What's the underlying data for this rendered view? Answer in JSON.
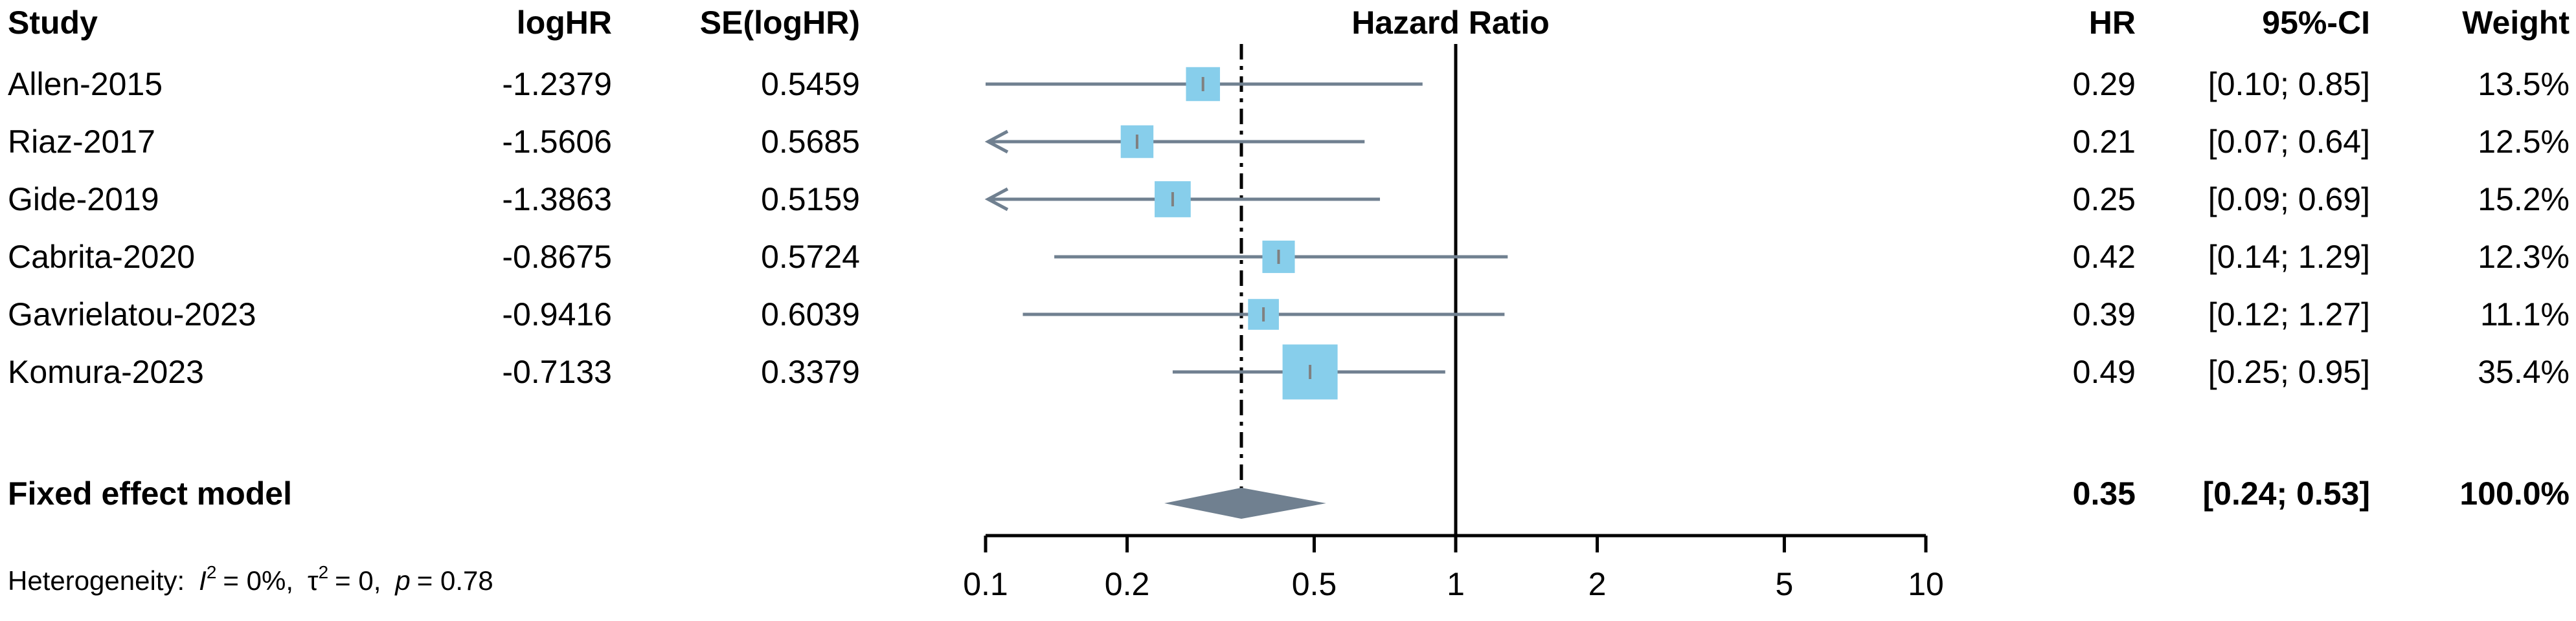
{
  "chart_data": {
    "type": "forest",
    "title": "Hazard Ratio",
    "columns": {
      "study": "Study",
      "loghr": "logHR",
      "se": "SE(logHR)",
      "hr": "HR",
      "ci": "95%-CI",
      "weight": "Weight"
    },
    "x_scale": "log",
    "xlim": [
      0.1,
      10
    ],
    "ticks": [
      {
        "value": 0.1,
        "label": "0.1"
      },
      {
        "value": 0.2,
        "label": "0.2"
      },
      {
        "value": 0.5,
        "label": "0.5"
      },
      {
        "value": 1,
        "label": "1"
      },
      {
        "value": 2,
        "label": "2"
      },
      {
        "value": 5,
        "label": "5"
      },
      {
        "value": 10,
        "label": "10"
      }
    ],
    "reference_line": 1,
    "pooled_line": 0.35,
    "studies": [
      {
        "name": "Allen-2015",
        "loghr": "-1.2379",
        "se": "0.5459",
        "hr_text": "0.29",
        "ci_text": "[0.10; 0.85]",
        "weight_text": "13.5%",
        "hr": 0.29,
        "lower": 0.1,
        "upper": 0.85,
        "weight": 13.5
      },
      {
        "name": "Riaz-2017",
        "loghr": "-1.5606",
        "se": "0.5685",
        "hr_text": "0.21",
        "ci_text": "[0.07; 0.64]",
        "weight_text": "12.5%",
        "hr": 0.21,
        "lower": 0.07,
        "upper": 0.64,
        "weight": 12.5
      },
      {
        "name": "Gide-2019",
        "loghr": "-1.3863",
        "se": "0.5159",
        "hr_text": "0.25",
        "ci_text": "[0.09; 0.69]",
        "weight_text": "15.2%",
        "hr": 0.25,
        "lower": 0.09,
        "upper": 0.69,
        "weight": 15.2
      },
      {
        "name": "Cabrita-2020",
        "loghr": "-0.8675",
        "se": "0.5724",
        "hr_text": "0.42",
        "ci_text": "[0.14; 1.29]",
        "weight_text": "12.3%",
        "hr": 0.42,
        "lower": 0.14,
        "upper": 1.29,
        "weight": 12.3
      },
      {
        "name": "Gavrielatou-2023",
        "loghr": "-0.9416",
        "se": "0.6039",
        "hr_text": "0.39",
        "ci_text": "[0.12; 1.27]",
        "weight_text": "11.1%",
        "hr": 0.39,
        "lower": 0.12,
        "upper": 1.27,
        "weight": 11.1
      },
      {
        "name": "Komura-2023",
        "loghr": "-0.7133",
        "se": "0.3379",
        "hr_text": "0.49",
        "ci_text": "[0.25; 0.95]",
        "weight_text": "35.4%",
        "hr": 0.49,
        "lower": 0.25,
        "upper": 0.95,
        "weight": 35.4
      }
    ],
    "pooled": {
      "name": "Fixed effect model",
      "hr_text": "0.35",
      "ci_text": "[0.24; 0.53]",
      "weight_text": "100.0%",
      "hr": 0.35,
      "lower": 0.24,
      "upper": 0.53
    },
    "heterogeneity": {
      "label": "Heterogeneity:",
      "i2_symbol": "I",
      "i2_value": "= 0%,",
      "tau2_symbol": "τ",
      "tau2_value": "= 0,",
      "p_symbol": "p",
      "p_value": "= 0.78"
    },
    "colors": {
      "square": "#87CEEB",
      "ci_line": "#708090",
      "diamond": "#708090",
      "median_tick": "#808080",
      "text": "#000000"
    }
  }
}
